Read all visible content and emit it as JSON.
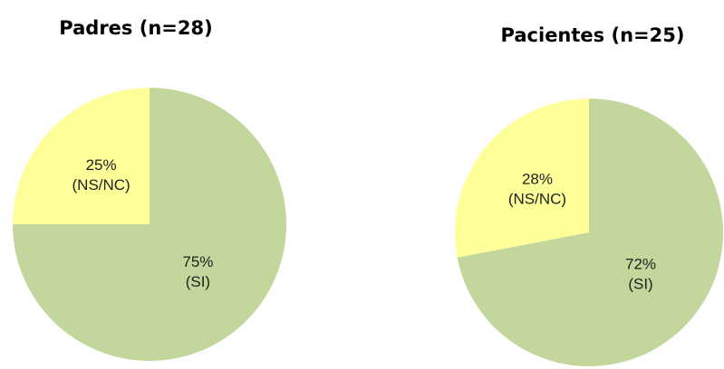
{
  "chart_data": [
    {
      "type": "pie",
      "title": "Padres (n=28)",
      "categories": [
        "(SI)",
        "(NS/NC)"
      ],
      "values": [
        75,
        25
      ],
      "value_labels": [
        "75%",
        "25%"
      ],
      "colors": [
        "#c3d69b",
        "#ffff99"
      ]
    },
    {
      "type": "pie",
      "title": "Pacientes (n=25)",
      "categories": [
        "(SI)",
        "(NS/NC)"
      ],
      "values": [
        72,
        28
      ],
      "value_labels": [
        "72%",
        "28%"
      ],
      "colors": [
        "#c3d69b",
        "#ffff99"
      ]
    }
  ]
}
